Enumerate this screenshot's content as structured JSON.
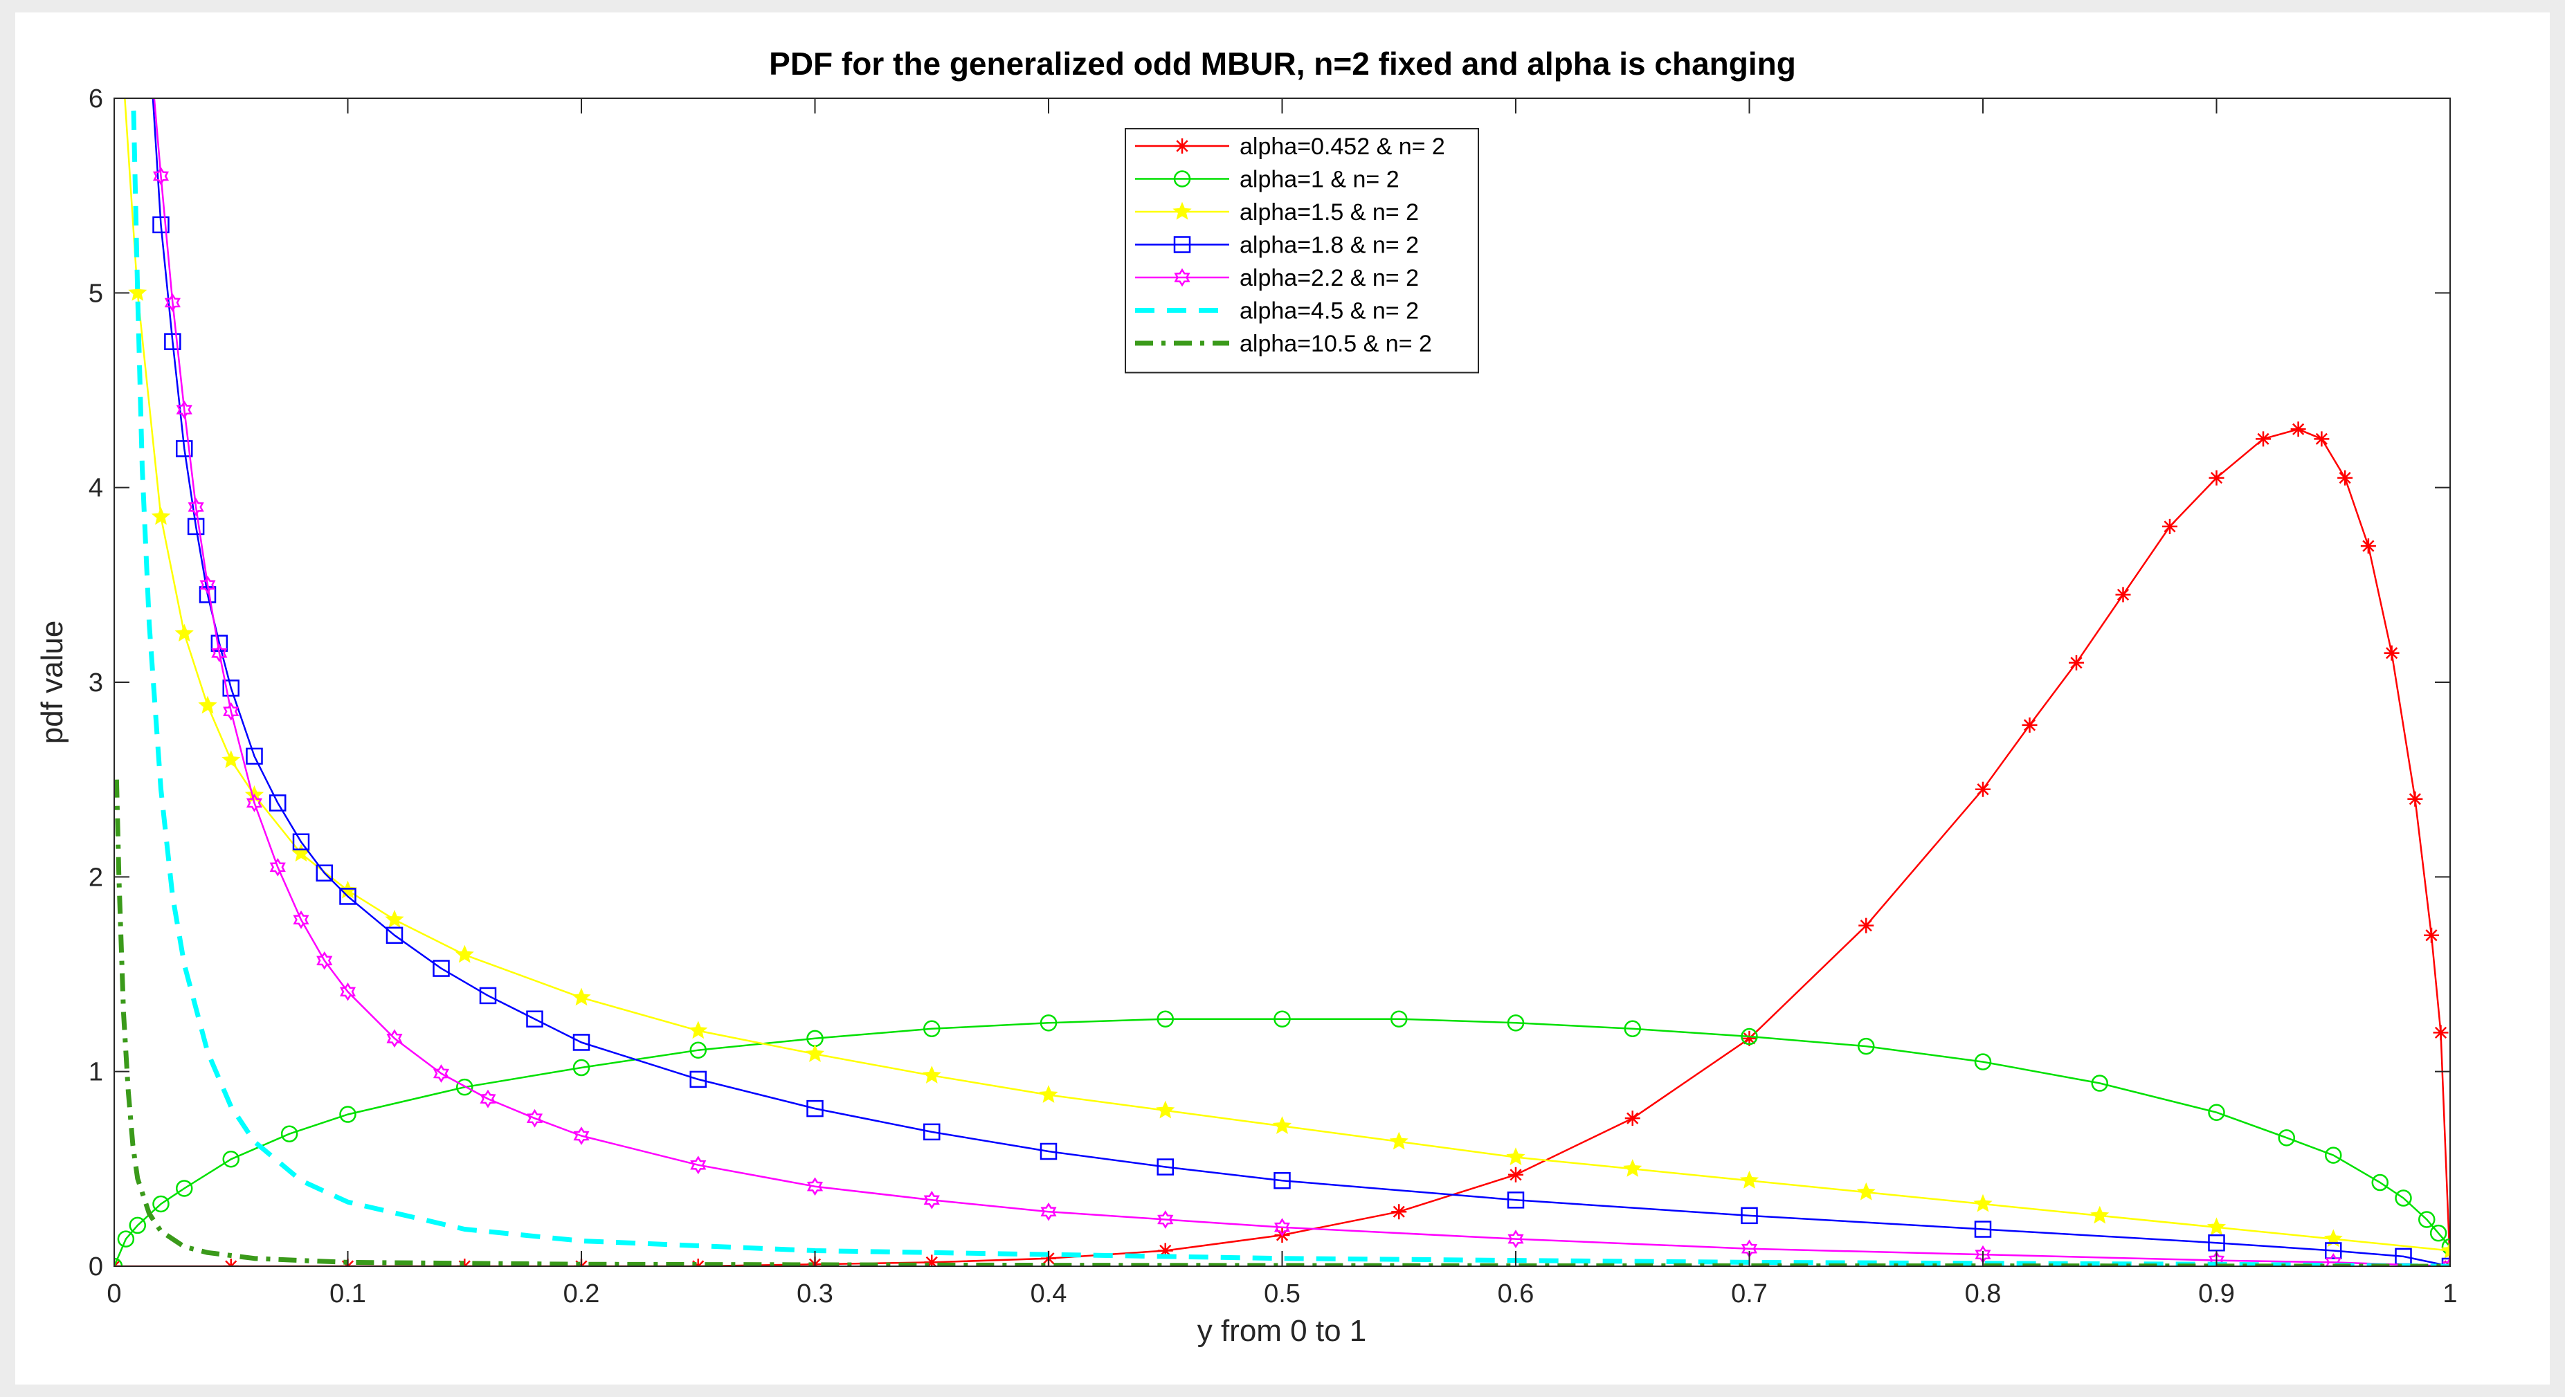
{
  "chart_data": {
    "type": "line",
    "title": "PDF for the generalized odd MBUR, n=2 fixed and alpha is changing",
    "xlabel": "y from 0 to 1",
    "ylabel": "pdf value",
    "xlim": [
      0,
      1
    ],
    "ylim": [
      0,
      6
    ],
    "xticks": [
      0,
      0.1,
      0.2,
      0.3,
      0.4,
      0.5,
      0.6,
      0.7,
      0.8,
      0.9,
      1
    ],
    "yticks": [
      0,
      1,
      2,
      3,
      4,
      5,
      6
    ],
    "grid": false,
    "legend_position": "top-center",
    "series": [
      {
        "name": "alpha=0.452 & n= 2",
        "color": "#ff0000",
        "marker": "asterisk",
        "line": "solid",
        "x": [
          0,
          0.05,
          0.1,
          0.15,
          0.2,
          0.25,
          0.3,
          0.35,
          0.4,
          0.45,
          0.5,
          0.55,
          0.6,
          0.65,
          0.7,
          0.75,
          0.8,
          0.82,
          0.84,
          0.86,
          0.88,
          0.9,
          0.92,
          0.935,
          0.945,
          0.955,
          0.965,
          0.975,
          0.985,
          0.992,
          0.996,
          1
        ],
        "y": [
          0,
          0,
          0,
          0,
          0,
          0,
          0.01,
          0.02,
          0.04,
          0.08,
          0.16,
          0.28,
          0.47,
          0.76,
          1.17,
          1.75,
          2.45,
          2.78,
          3.1,
          3.45,
          3.8,
          4.05,
          4.25,
          4.3,
          4.25,
          4.05,
          3.7,
          3.15,
          2.4,
          1.7,
          1.2,
          0
        ]
      },
      {
        "name": "alpha=1 & n= 2",
        "color": "#00e000",
        "marker": "circle",
        "line": "solid",
        "x": [
          0,
          0.005,
          0.01,
          0.02,
          0.03,
          0.05,
          0.075,
          0.1,
          0.15,
          0.2,
          0.25,
          0.3,
          0.35,
          0.4,
          0.45,
          0.5,
          0.55,
          0.6,
          0.65,
          0.7,
          0.75,
          0.8,
          0.85,
          0.9,
          0.93,
          0.95,
          0.97,
          0.98,
          0.99,
          0.995,
          1
        ],
        "y": [
          0,
          0.14,
          0.21,
          0.32,
          0.4,
          0.55,
          0.68,
          0.78,
          0.92,
          1.02,
          1.11,
          1.17,
          1.22,
          1.25,
          1.27,
          1.27,
          1.27,
          1.25,
          1.22,
          1.18,
          1.13,
          1.05,
          0.94,
          0.79,
          0.66,
          0.57,
          0.43,
          0.35,
          0.24,
          0.17,
          0.1
        ]
      },
      {
        "name": "alpha=1.5 & n= 2",
        "color": "#ffff00",
        "marker": "star",
        "line": "solid",
        "x": [
          0.004,
          0.01,
          0.02,
          0.03,
          0.04,
          0.05,
          0.06,
          0.08,
          0.1,
          0.12,
          0.15,
          0.2,
          0.25,
          0.3,
          0.35,
          0.4,
          0.45,
          0.5,
          0.55,
          0.6,
          0.65,
          0.7,
          0.75,
          0.8,
          0.85,
          0.9,
          0.95,
          1
        ],
        "y": [
          6.1,
          5.0,
          3.85,
          3.25,
          2.88,
          2.6,
          2.42,
          2.12,
          1.93,
          1.78,
          1.6,
          1.38,
          1.21,
          1.09,
          0.98,
          0.88,
          0.8,
          0.72,
          0.64,
          0.56,
          0.5,
          0.44,
          0.38,
          0.32,
          0.26,
          0.2,
          0.14,
          0.08
        ]
      },
      {
        "name": "alpha=1.8 & n= 2",
        "color": "#0000ff",
        "marker": "square",
        "line": "solid",
        "x": [
          0.015,
          0.02,
          0.025,
          0.03,
          0.035,
          0.04,
          0.045,
          0.05,
          0.06,
          0.07,
          0.08,
          0.09,
          0.1,
          0.12,
          0.14,
          0.16,
          0.18,
          0.2,
          0.25,
          0.3,
          0.35,
          0.4,
          0.45,
          0.5,
          0.6,
          0.7,
          0.8,
          0.9,
          0.95,
          0.98,
          1
        ],
        "y": [
          6.3,
          5.35,
          4.75,
          4.2,
          3.8,
          3.45,
          3.2,
          2.97,
          2.62,
          2.38,
          2.18,
          2.02,
          1.9,
          1.7,
          1.53,
          1.39,
          1.27,
          1.15,
          0.96,
          0.81,
          0.69,
          0.59,
          0.51,
          0.44,
          0.34,
          0.26,
          0.19,
          0.12,
          0.08,
          0.05,
          0
        ]
      },
      {
        "name": "alpha=2.2 & n= 2",
        "color": "#ff00ff",
        "marker": "hexagram",
        "line": "solid",
        "x": [
          0.015,
          0.02,
          0.025,
          0.03,
          0.035,
          0.04,
          0.045,
          0.05,
          0.06,
          0.07,
          0.08,
          0.09,
          0.1,
          0.12,
          0.14,
          0.16,
          0.18,
          0.2,
          0.25,
          0.3,
          0.35,
          0.4,
          0.45,
          0.5,
          0.6,
          0.7,
          0.8,
          0.9,
          0.95,
          1
        ],
        "y": [
          6.3,
          5.6,
          4.95,
          4.4,
          3.9,
          3.5,
          3.15,
          2.85,
          2.38,
          2.05,
          1.78,
          1.57,
          1.41,
          1.17,
          0.99,
          0.86,
          0.76,
          0.67,
          0.52,
          0.41,
          0.34,
          0.28,
          0.24,
          0.2,
          0.14,
          0.09,
          0.06,
          0.03,
          0.02,
          0
        ]
      },
      {
        "name": "alpha=4.5 & n= 2",
        "color": "#00ffff",
        "marker": "none",
        "line": "dashed",
        "x": [
          0.008,
          0.01,
          0.012,
          0.015,
          0.02,
          0.025,
          0.03,
          0.04,
          0.05,
          0.06,
          0.08,
          0.1,
          0.15,
          0.2,
          0.3,
          0.4,
          0.5,
          0.6,
          0.7,
          0.8,
          0.9,
          1
        ],
        "y": [
          6.1,
          5.0,
          4.1,
          3.3,
          2.45,
          1.9,
          1.55,
          1.1,
          0.82,
          0.64,
          0.44,
          0.33,
          0.19,
          0.13,
          0.08,
          0.06,
          0.04,
          0.03,
          0.02,
          0.015,
          0.01,
          0
        ]
      },
      {
        "name": "alpha=10.5 & n= 2",
        "color": "#3a9a1a",
        "marker": "none",
        "line": "dashdot",
        "x": [
          0.001,
          0.002,
          0.004,
          0.006,
          0.008,
          0.01,
          0.015,
          0.02,
          0.03,
          0.04,
          0.06,
          0.08,
          0.1,
          0.2,
          0.4,
          0.6,
          0.8,
          1
        ],
        "y": [
          2.5,
          2.0,
          1.3,
          0.9,
          0.62,
          0.45,
          0.27,
          0.18,
          0.1,
          0.07,
          0.04,
          0.03,
          0.02,
          0.01,
          0.005,
          0.003,
          0.002,
          0
        ]
      }
    ]
  }
}
